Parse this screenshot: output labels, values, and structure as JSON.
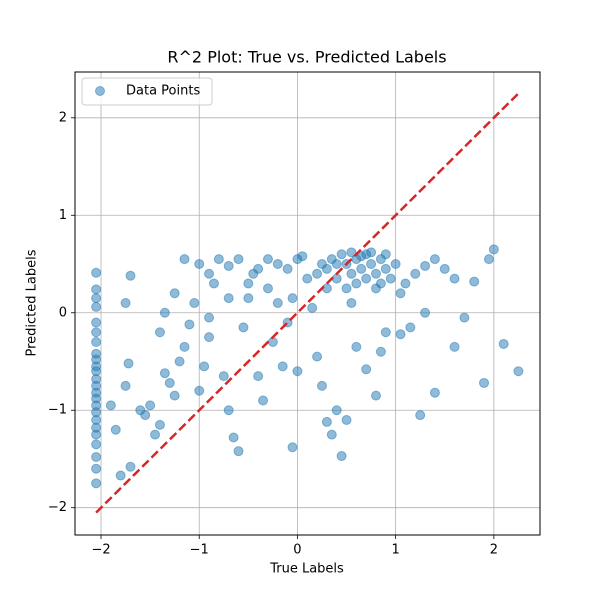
{
  "chart_data": {
    "type": "scatter",
    "title": "R^2 Plot: True vs. Predicted Labels",
    "x_label": "True Labels",
    "y_label": "Predicted Labels",
    "xlim": [
      -2.265,
      2.47
    ],
    "ylim": [
      -2.28,
      2.47
    ],
    "xticks": [
      {
        "value": -2,
        "label": "−2"
      },
      {
        "value": -1,
        "label": "−1"
      },
      0,
      1,
      2
    ],
    "yticks": [
      {
        "value": -2,
        "label": "−2"
      },
      {
        "value": -1,
        "label": "−1"
      },
      0,
      1,
      2
    ],
    "grid": true,
    "legend": "upper left",
    "x": [
      -2.05,
      -2.05,
      -2.05,
      -2.05,
      -2.05,
      -2.05,
      -2.05,
      -2.05,
      -2.05,
      -2.05,
      -2.05,
      -2.05,
      -2.05,
      -2.05,
      -2.05,
      -2.05,
      -2.05,
      -2.05,
      -2.05,
      -2.05,
      -2.05,
      -2.05,
      -2.05,
      -2.05,
      -1.9,
      -1.85,
      -1.8,
      -1.7,
      -1.75,
      -1.72,
      -1.75,
      -1.7,
      -1.6,
      -1.55,
      -1.5,
      -1.45,
      -1.4,
      -1.35,
      -1.3,
      -1.25,
      -1.2,
      -1.15,
      -1.1,
      -1.05,
      -1.0,
      -0.95,
      -0.9,
      -0.85,
      -0.8,
      -0.75,
      -0.7,
      -0.65,
      -0.6,
      -0.55,
      -0.5,
      -0.45,
      -0.4,
      -0.35,
      -0.3,
      -0.25,
      -0.2,
      -0.15,
      -0.1,
      -0.05,
      0.0,
      0.0,
      -0.05,
      0.1,
      0.15,
      0.2,
      0.25,
      0.3,
      0.35,
      0.4,
      0.45,
      0.5,
      0.55,
      0.6,
      0.7,
      0.8,
      0.85,
      0.9,
      1.05,
      1.15,
      1.25,
      1.3,
      1.4,
      1.6,
      1.7,
      1.9,
      2.1,
      2.25,
      2.0,
      1.95,
      1.8,
      1.6,
      1.5,
      1.4,
      1.3,
      1.2,
      1.1,
      1.05,
      0.2,
      0.25,
      0.3,
      0.35,
      0.4,
      0.45,
      0.5,
      0.55,
      0.6,
      0.65,
      0.7,
      0.75,
      0.8,
      0.85,
      0.9,
      0.95,
      1.0,
      0.6,
      0.7,
      0.8,
      0.5,
      0.3,
      0.65,
      0.75,
      0.85,
      0.9,
      0.4,
      0.55,
      -1.25,
      -1.15,
      -1.0,
      -0.9,
      -0.7,
      -0.6,
      -0.4,
      -0.3,
      -0.1,
      0.05,
      -0.2,
      -0.5,
      -0.7,
      -0.9,
      -1.35,
      -1.4
    ],
    "series": [
      {
        "name": "Data Points",
        "color": "#1f77b4",
        "values": [
          0.41,
          0.24,
          0.15,
          0.06,
          -0.1,
          -0.2,
          -0.3,
          -0.42,
          -0.48,
          -0.55,
          -0.6,
          -0.68,
          -0.75,
          -0.82,
          -0.88,
          -0.95,
          -1.02,
          -1.1,
          -1.18,
          -1.25,
          -1.35,
          -1.48,
          -1.6,
          -1.75,
          -0.95,
          -1.2,
          -1.67,
          -1.58,
          -0.75,
          -0.52,
          0.1,
          0.38,
          -1.0,
          -1.05,
          -0.95,
          -1.25,
          -1.15,
          -0.62,
          -0.72,
          -0.85,
          -0.5,
          -0.35,
          -0.12,
          0.1,
          -0.8,
          -0.55,
          -0.25,
          0.3,
          0.55,
          -0.65,
          -1.0,
          -1.28,
          -1.42,
          -0.15,
          0.15,
          0.4,
          -0.65,
          -0.9,
          0.25,
          -0.3,
          0.5,
          -0.55,
          -0.1,
          0.15,
          0.55,
          -0.6,
          -1.38,
          0.35,
          0.05,
          -0.45,
          -0.75,
          -1.12,
          -1.25,
          -1.0,
          -1.47,
          -1.1,
          0.1,
          -0.35,
          -0.58,
          -0.85,
          -0.4,
          -0.2,
          -0.22,
          -0.15,
          -1.05,
          0.0,
          -0.82,
          -0.35,
          -0.05,
          -0.72,
          -0.32,
          -0.6,
          0.65,
          0.55,
          0.32,
          0.35,
          0.45,
          0.55,
          0.48,
          0.4,
          0.3,
          0.2,
          0.4,
          0.5,
          0.45,
          0.55,
          0.35,
          0.6,
          0.5,
          0.4,
          0.55,
          0.45,
          0.6,
          0.5,
          0.4,
          0.55,
          0.45,
          0.35,
          0.5,
          0.3,
          0.35,
          0.25,
          0.25,
          0.25,
          0.58,
          0.62,
          0.3,
          0.6,
          0.5,
          0.62,
          0.2,
          0.55,
          0.5,
          0.4,
          0.48,
          0.55,
          0.45,
          0.55,
          0.45,
          0.58,
          0.1,
          0.3,
          0.15,
          -0.05,
          0.0,
          -0.2
        ]
      }
    ],
    "reference_line": {
      "x": [
        -2.05,
        2.25
      ],
      "y": [
        -2.05,
        2.25
      ],
      "color": "#d62728",
      "style": "dashed"
    }
  }
}
